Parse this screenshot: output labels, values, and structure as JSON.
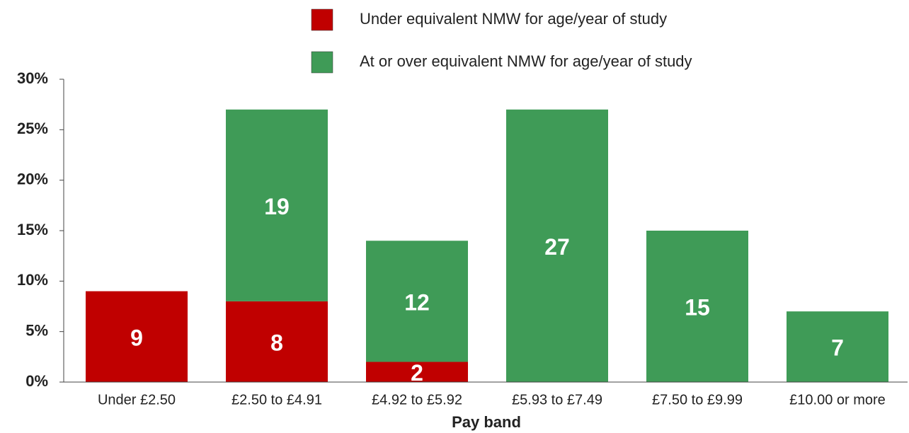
{
  "chart_data": {
    "type": "stacked_bar",
    "xlabel": "Pay band",
    "categories": [
      "Under £2.50",
      "£2.50 to £4.91",
      "£4.92 to £5.92",
      "£5.93 to £7.49",
      "£7.50 to £9.99",
      "£10.00 or more"
    ],
    "series": [
      {
        "name": "Under equivalent NMW for age/year of study",
        "color": "#c00000",
        "values": [
          9,
          8,
          2,
          null,
          null,
          null
        ]
      },
      {
        "name": "At or over equivalent NMW for age/year of study",
        "color": "#3f9b57",
        "values": [
          null,
          19,
          12,
          27,
          15,
          7
        ]
      }
    ],
    "ylim": [
      0,
      30
    ],
    "yticks": [
      {
        "value": 0,
        "label": "0%"
      },
      {
        "value": 5,
        "label": "5%"
      },
      {
        "value": 10,
        "label": "10%"
      },
      {
        "value": 15,
        "label": "15%"
      },
      {
        "value": 20,
        "label": "20%"
      },
      {
        "value": 25,
        "label": "25%"
      },
      {
        "value": 30,
        "label": "30%"
      }
    ],
    "legend": "top"
  }
}
